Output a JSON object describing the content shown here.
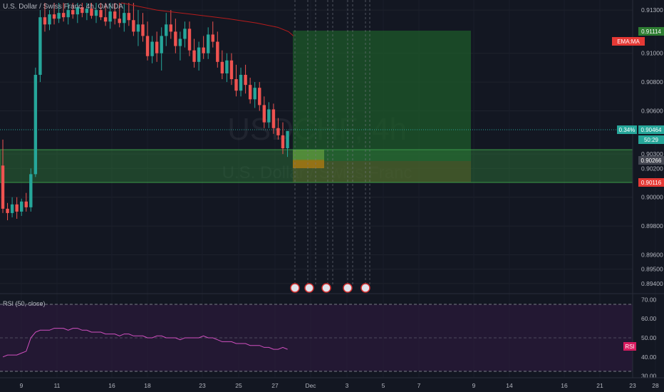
{
  "chart_title": "U.S. Dollar / Swiss Franc, 4h, OANDA",
  "watermark": {
    "symbol": "USDCHF, 4h",
    "name": "U.S. Dollar / Swiss Franc"
  },
  "rsi_title": "RSI (50, close)",
  "colors": {
    "background": "#131722",
    "up": "#26a69a",
    "down": "#ef5350",
    "ema": "#b71c1c",
    "rsi_line": "#d04fbf",
    "rsi_band": "#2b1a3a",
    "profit_zone": "#1e5a2a",
    "loss_zone": "#7a4a1a",
    "zone_band": "#2f7a3a"
  },
  "price_axis": {
    "ticks": [
      "0.91300",
      "0.91000",
      "0.90800",
      "0.90600",
      "0.90300",
      "0.90200",
      "0.90000",
      "0.89800",
      "0.89600",
      "0.89500",
      "0.89400"
    ],
    "range": [
      0.8935,
      0.9135
    ]
  },
  "badges": {
    "ema": "EMA:MA",
    "target": "0.91114",
    "pct": "0.34%",
    "last": "0.90464",
    "timer": "50:29",
    "entry": "0.90266",
    "stop": "0.90116"
  },
  "rsi_axis": {
    "ticks": [
      "70.00",
      "60.00",
      "50.00",
      "40.00",
      "30.00"
    ],
    "label": "RSI",
    "range": [
      25,
      75
    ]
  },
  "time_axis": [
    "9",
    "11",
    "16",
    "18",
    "23",
    "25",
    "27",
    "Dec",
    "3",
    "5",
    "7",
    "9",
    "14",
    "16",
    "21",
    "23",
    "28"
  ],
  "chart_data": {
    "type": "candlestick",
    "series": [
      {
        "o": 0.9022,
        "h": 0.904,
        "l": 0.8989,
        "c": 0.8992
      },
      {
        "o": 0.8992,
        "h": 0.8996,
        "l": 0.8984,
        "c": 0.8989
      },
      {
        "o": 0.8989,
        "h": 0.9,
        "l": 0.8986,
        "c": 0.8995
      },
      {
        "o": 0.8995,
        "h": 0.9,
        "l": 0.8985,
        "c": 0.899
      },
      {
        "o": 0.899,
        "h": 0.8999,
        "l": 0.8987,
        "c": 0.8997
      },
      {
        "o": 0.8997,
        "h": 0.9003,
        "l": 0.899,
        "c": 0.8993
      },
      {
        "o": 0.8993,
        "h": 0.902,
        "l": 0.899,
        "c": 0.9016
      },
      {
        "o": 0.9016,
        "h": 0.909,
        "l": 0.9014,
        "c": 0.9085
      },
      {
        "o": 0.9085,
        "h": 0.913,
        "l": 0.908,
        "c": 0.9125
      },
      {
        "o": 0.9125,
        "h": 0.9135,
        "l": 0.9115,
        "c": 0.912
      },
      {
        "o": 0.912,
        "h": 0.913,
        "l": 0.9116,
        "c": 0.9127
      },
      {
        "o": 0.9127,
        "h": 0.9135,
        "l": 0.912,
        "c": 0.9124
      },
      {
        "o": 0.9124,
        "h": 0.9135,
        "l": 0.9121,
        "c": 0.9128
      },
      {
        "o": 0.9128,
        "h": 0.9135,
        "l": 0.9122,
        "c": 0.9125
      },
      {
        "o": 0.9125,
        "h": 0.9135,
        "l": 0.912,
        "c": 0.913
      },
      {
        "o": 0.913,
        "h": 0.9135,
        "l": 0.9124,
        "c": 0.9127
      },
      {
        "o": 0.9127,
        "h": 0.9135,
        "l": 0.9121,
        "c": 0.9132
      },
      {
        "o": 0.9132,
        "h": 0.9135,
        "l": 0.9125,
        "c": 0.9128
      },
      {
        "o": 0.9128,
        "h": 0.9135,
        "l": 0.9123,
        "c": 0.9131
      },
      {
        "o": 0.9131,
        "h": 0.9135,
        "l": 0.9124,
        "c": 0.9126
      },
      {
        "o": 0.9126,
        "h": 0.9135,
        "l": 0.9121,
        "c": 0.913
      },
      {
        "o": 0.913,
        "h": 0.9135,
        "l": 0.9123,
        "c": 0.9125
      },
      {
        "o": 0.9125,
        "h": 0.9135,
        "l": 0.9119,
        "c": 0.9122
      },
      {
        "o": 0.9122,
        "h": 0.9135,
        "l": 0.9117,
        "c": 0.9129
      },
      {
        "o": 0.9129,
        "h": 0.9135,
        "l": 0.912,
        "c": 0.9124
      },
      {
        "o": 0.9124,
        "h": 0.9135,
        "l": 0.9118,
        "c": 0.9121
      },
      {
        "o": 0.9121,
        "h": 0.9135,
        "l": 0.9115,
        "c": 0.9128
      },
      {
        "o": 0.9128,
        "h": 0.9135,
        "l": 0.9119,
        "c": 0.9123
      },
      {
        "o": 0.9123,
        "h": 0.9135,
        "l": 0.9112,
        "c": 0.9115
      },
      {
        "o": 0.9115,
        "h": 0.913,
        "l": 0.9105,
        "c": 0.912
      },
      {
        "o": 0.912,
        "h": 0.9128,
        "l": 0.9108,
        "c": 0.9112
      },
      {
        "o": 0.9112,
        "h": 0.9122,
        "l": 0.9095,
        "c": 0.9098
      },
      {
        "o": 0.9098,
        "h": 0.9112,
        "l": 0.9093,
        "c": 0.9108
      },
      {
        "o": 0.9108,
        "h": 0.9115,
        "l": 0.9094,
        "c": 0.91
      },
      {
        "o": 0.91,
        "h": 0.9118,
        "l": 0.9088,
        "c": 0.9112
      },
      {
        "o": 0.9112,
        "h": 0.9128,
        "l": 0.9105,
        "c": 0.912
      },
      {
        "o": 0.912,
        "h": 0.913,
        "l": 0.911,
        "c": 0.9115
      },
      {
        "o": 0.9115,
        "h": 0.9124,
        "l": 0.91,
        "c": 0.9105
      },
      {
        "o": 0.9105,
        "h": 0.9115,
        "l": 0.9095,
        "c": 0.911
      },
      {
        "o": 0.911,
        "h": 0.9122,
        "l": 0.9104,
        "c": 0.9117
      },
      {
        "o": 0.9117,
        "h": 0.9122,
        "l": 0.9098,
        "c": 0.9102
      },
      {
        "o": 0.9102,
        "h": 0.911,
        "l": 0.909,
        "c": 0.9094
      },
      {
        "o": 0.9094,
        "h": 0.9108,
        "l": 0.9088,
        "c": 0.9104
      },
      {
        "o": 0.9104,
        "h": 0.9112,
        "l": 0.9096,
        "c": 0.91
      },
      {
        "o": 0.91,
        "h": 0.9118,
        "l": 0.9096,
        "c": 0.9113
      },
      {
        "o": 0.9113,
        "h": 0.9122,
        "l": 0.9104,
        "c": 0.9108
      },
      {
        "o": 0.9108,
        "h": 0.9115,
        "l": 0.909,
        "c": 0.9094
      },
      {
        "o": 0.9094,
        "h": 0.9102,
        "l": 0.9082,
        "c": 0.9086
      },
      {
        "o": 0.9086,
        "h": 0.91,
        "l": 0.908,
        "c": 0.9095
      },
      {
        "o": 0.9095,
        "h": 0.91,
        "l": 0.9078,
        "c": 0.9082
      },
      {
        "o": 0.9082,
        "h": 0.9092,
        "l": 0.907,
        "c": 0.9074
      },
      {
        "o": 0.9074,
        "h": 0.909,
        "l": 0.907,
        "c": 0.9085
      },
      {
        "o": 0.9085,
        "h": 0.9092,
        "l": 0.9072,
        "c": 0.9078
      },
      {
        "o": 0.9078,
        "h": 0.9083,
        "l": 0.9065,
        "c": 0.9068
      },
      {
        "o": 0.9068,
        "h": 0.908,
        "l": 0.9062,
        "c": 0.9076
      },
      {
        "o": 0.9076,
        "h": 0.908,
        "l": 0.906,
        "c": 0.9064
      },
      {
        "o": 0.9064,
        "h": 0.907,
        "l": 0.9048,
        "c": 0.9052
      },
      {
        "o": 0.9052,
        "h": 0.9066,
        "l": 0.9048,
        "c": 0.9061
      },
      {
        "o": 0.9061,
        "h": 0.9065,
        "l": 0.9044,
        "c": 0.9048
      },
      {
        "o": 0.9048,
        "h": 0.9055,
        "l": 0.904,
        "c": 0.9043
      },
      {
        "o": 0.9043,
        "h": 0.9052,
        "l": 0.903,
        "c": 0.9034
      },
      {
        "o": 0.9034,
        "h": 0.9046,
        "l": 0.9028,
        "c": 0.9046
      }
    ],
    "ema_path": [
      0.9135,
      0.913,
      0.9127,
      0.9124,
      0.9121,
      0.9118,
      0.9115,
      0.9112
    ]
  }
}
